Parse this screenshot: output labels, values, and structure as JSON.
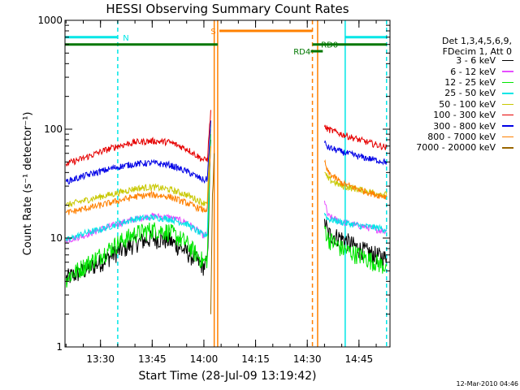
{
  "chart_data": {
    "type": "line",
    "title": "HESSI Observing Summary Count Rates",
    "xlabel": "Start Time (28-Jul-09 13:19:42)",
    "ylabel": "Count Rate (s⁻¹ detector⁻¹)",
    "ylog": true,
    "ylim": [
      1,
      1000
    ],
    "xlim": [
      "13:19:42",
      "14:54:00"
    ],
    "xticks": [
      "13:30",
      "13:45",
      "14:00",
      "14:15",
      "14:30",
      "14:45"
    ],
    "yticks": [
      "1",
      "10",
      "100",
      "1000"
    ],
    "legend_header": [
      "Det 1,3,4,5,6,9,",
      "FDecim 1, Att 0"
    ],
    "legend_position": "right, outside plot",
    "series": [
      {
        "name": "3 - 6 keV",
        "color": "#000000",
        "segments": [
          {
            "x": [
              "13:20",
              "13:25",
              "13:30",
              "13:35",
              "13:40",
              "13:45",
              "13:50",
              "13:55",
              "14:00",
              "14:01",
              "14:02"
            ],
            "y": [
              4.3,
              5,
              6,
              7.5,
              9,
              10,
              9.5,
              7.5,
              5.5,
              6,
              80
            ]
          },
          {
            "x": [
              "14:35",
              "14:36",
              "14:40",
              "14:45",
              "14:50",
              "14:53"
            ],
            "y": [
              15,
              11,
              10,
              8,
              7,
              6.5
            ]
          }
        ]
      },
      {
        "name": "6 - 12 keV",
        "color": "#e64dff",
        "segments": [
          {
            "x": [
              "13:20",
              "13:25",
              "13:30",
              "13:35",
              "13:40",
              "13:45",
              "13:50",
              "13:55",
              "14:00",
              "14:01",
              "14:02"
            ],
            "y": [
              9.5,
              10.5,
              12,
              13.5,
              15,
              16,
              15.5,
              14,
              10.5,
              11,
              100
            ]
          },
          {
            "x": [
              "14:35",
              "14:36",
              "14:40",
              "14:45",
              "14:50",
              "14:53"
            ],
            "y": [
              22,
              16,
              14,
              13,
              12,
              11.5
            ]
          }
        ]
      },
      {
        "name": "12 - 25 keV",
        "color": "#00e600",
        "segments": [
          {
            "x": [
              "13:20",
              "13:25",
              "13:30",
              "13:35",
              "13:40",
              "13:45",
              "13:50",
              "13:55",
              "14:00",
              "14:01",
              "14:02"
            ],
            "y": [
              4.3,
              5.5,
              7,
              9,
              11,
              12,
              11.5,
              9,
              6,
              6.5,
              90
            ]
          },
          {
            "x": [
              "14:35",
              "14:36",
              "14:40",
              "14:45",
              "14:50",
              "14:53"
            ],
            "y": [
              13,
              10,
              8,
              7,
              6,
              5.5
            ]
          }
        ]
      },
      {
        "name": "25 - 50 keV",
        "color": "#00e6e6",
        "segments": [
          {
            "x": [
              "13:20",
              "13:25",
              "13:30",
              "13:35",
              "13:40",
              "13:45",
              "13:50",
              "13:55",
              "14:00",
              "14:01",
              "14:02"
            ],
            "y": [
              9.5,
              11,
              12,
              13.5,
              15,
              15.5,
              15,
              13.5,
              10.5,
              11,
              110
            ]
          },
          {
            "x": [
              "14:35",
              "14:36",
              "14:40",
              "14:45",
              "14:50",
              "14:53"
            ],
            "y": [
              17,
              15,
              14,
              13,
              12.5,
              12
            ]
          }
        ]
      },
      {
        "name": "50 - 100 keV",
        "color": "#c8c800",
        "segments": [
          {
            "x": [
              "13:20",
              "13:25",
              "13:30",
              "13:35",
              "13:40",
              "13:45",
              "13:50",
              "13:55",
              "14:00",
              "14:01",
              "14:02"
            ],
            "y": [
              20,
              22,
              24,
              26,
              28.5,
              29.5,
              28,
              25,
              21,
              22,
              120
            ]
          },
          {
            "x": [
              "14:35",
              "14:36",
              "14:40",
              "14:45",
              "14:50",
              "14:53"
            ],
            "y": [
              40,
              35,
              30,
              28,
              26,
              25
            ]
          }
        ]
      },
      {
        "name": "100 - 300 keV",
        "color": "#e60000",
        "segments": [
          {
            "x": [
              "13:20",
              "13:25",
              "13:30",
              "13:35",
              "13:40",
              "13:45",
              "13:50",
              "13:55",
              "14:00",
              "14:01",
              "14:02"
            ],
            "y": [
              48,
              54,
              62,
              70,
              76,
              78,
              76,
              66,
              52,
              53,
              150
            ]
          },
          {
            "x": [
              "14:35",
              "14:36",
              "14:40",
              "14:45",
              "14:50",
              "14:53"
            ],
            "y": [
              105,
              100,
              90,
              80,
              72,
              68
            ]
          }
        ]
      },
      {
        "name": "300 - 800 keV",
        "color": "#0000e6",
        "segments": [
          {
            "x": [
              "13:20",
              "13:25",
              "13:30",
              "13:35",
              "13:40",
              "13:45",
              "13:50",
              "13:55",
              "14:00",
              "14:01",
              "14:02"
            ],
            "y": [
              33,
              37,
              41,
              45,
              48,
              49,
              47,
              41,
              34,
              35,
              120
            ]
          },
          {
            "x": [
              "14:35",
              "14:36",
              "14:40",
              "14:45",
              "14:50",
              "14:53"
            ],
            "y": [
              75,
              68,
              62,
              56,
              52,
              50
            ]
          }
        ]
      },
      {
        "name": "800 - 7000 keV",
        "color": "#ff8000",
        "segments": [
          {
            "x": [
              "13:20",
              "13:25",
              "13:30",
              "13:35",
              "13:40",
              "13:45",
              "13:50",
              "13:55",
              "14:00",
              "14:01",
              "14:02"
            ],
            "y": [
              17,
              18.5,
              20,
              22,
              24,
              25,
              24,
              21,
              18,
              18.5,
              70
            ]
          },
          {
            "x": [
              "14:35",
              "14:36",
              "14:40",
              "14:45",
              "14:50",
              "14:53"
            ],
            "y": [
              50,
              40,
              32,
              28,
              25,
              24
            ]
          }
        ]
      },
      {
        "name": "7000 - 20000 keV",
        "color": "#996600",
        "segments": [
          {
            "x": [
              "14:02",
              "14:02:30",
              "14:03"
            ],
            "y": [
              2,
              25,
              60
            ]
          }
        ]
      }
    ],
    "bars": [
      {
        "label": "N",
        "color": "#00e6e6",
        "y": 700,
        "from": "13:19:42",
        "to": "13:35:00",
        "label_at": "13:36:30"
      },
      {
        "label": "",
        "color": "#00e6e6",
        "y": 700,
        "from": "14:41:00",
        "to": "14:53:00",
        "label_at": ""
      },
      {
        "label": "S",
        "color": "#ff8000",
        "y": 800,
        "from": "14:04:30",
        "to": "14:31:30",
        "label_at": "14:02:00"
      },
      {
        "label": "",
        "color": "#007700",
        "y": 600,
        "from": "13:19:42",
        "to": "14:04:00",
        "label_at": ""
      },
      {
        "label": "RD0",
        "color": "#007700",
        "y": 600,
        "from": "14:31:30",
        "to": "14:53:00",
        "label_at": "14:34:00"
      },
      {
        "label": "RD4",
        "color": "#007700",
        "y": 520,
        "from": "14:31:00",
        "to": "14:34:30",
        "label_at": "14:26:00"
      }
    ],
    "vlines": [
      {
        "x": "13:35:00",
        "color": "#00e6e6",
        "style": "dashed"
      },
      {
        "x": "14:41:00",
        "color": "#00e6e6",
        "style": "solid"
      },
      {
        "x": "14:53:00",
        "color": "#00e6e6",
        "style": "dashed"
      },
      {
        "x": "14:04:00",
        "color": "#ff8000",
        "style": "solid"
      },
      {
        "x": "14:31:30",
        "color": "#ff8000",
        "style": "dashed"
      },
      {
        "x": "14:03:00",
        "color": "#ff8000",
        "style": "solid"
      },
      {
        "x": "14:33:00",
        "color": "#ff8000",
        "style": "solid"
      }
    ]
  },
  "date_stamp": "12-Mar-2010 04:46"
}
